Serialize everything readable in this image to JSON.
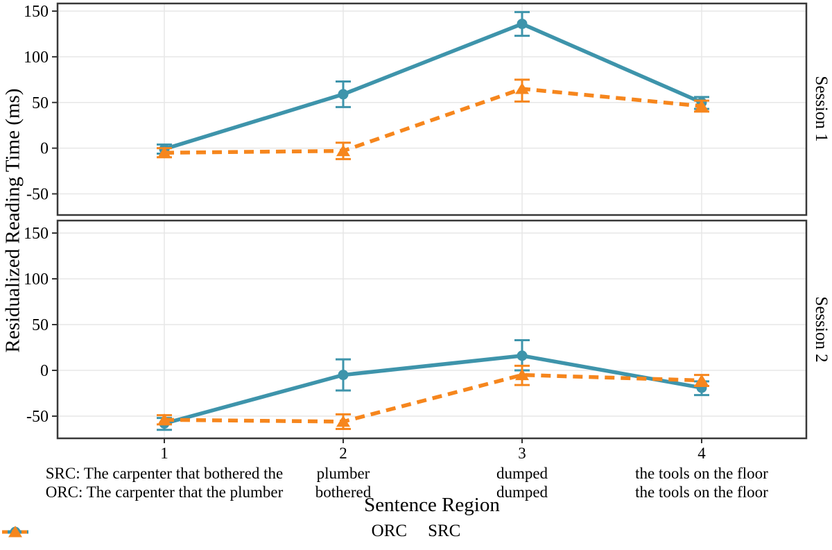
{
  "chart_data": {
    "type": "line",
    "title": "",
    "ylabel": "Residualized Reading Time (ms)",
    "xlabel": "Sentence Region",
    "x": [
      1,
      2,
      3,
      4
    ],
    "y_ticks": [
      150,
      100,
      50,
      0,
      -50
    ],
    "ylim": [
      -73,
      158
    ],
    "grid": "major-only",
    "legend": {
      "position": "bottom",
      "entries": [
        "ORC",
        "SRC"
      ]
    },
    "colors": {
      "orc": "#3E94AB",
      "src": "#F6861D",
      "grid": "#E7E7E7",
      "border": "#383838",
      "axis": "#333333",
      "text": "#000000"
    },
    "series_styles": {
      "ORC": {
        "color": "#3E94AB",
        "line": "solid",
        "marker": "circle"
      },
      "SRC": {
        "color": "#F6861D",
        "line": "dashed",
        "marker": "triangle"
      }
    },
    "facets": [
      {
        "label": "Session 1",
        "series": [
          {
            "name": "ORC",
            "values": [
              -1,
              59,
              136,
              50
            ],
            "ci_lower": [
              -6,
              45,
              123,
              43
            ],
            "ci_upper": [
              4,
              73,
              149,
              56
            ]
          },
          {
            "name": "SRC",
            "values": [
              -5,
              -3,
              65,
              46
            ],
            "ci_lower": [
              -10,
              -12,
              51,
              40
            ],
            "ci_upper": [
              0,
              6,
              75,
              52
            ]
          }
        ]
      },
      {
        "label": "Session 2",
        "series": [
          {
            "name": "ORC",
            "values": [
              -58,
              -5,
              16,
              -19
            ],
            "ci_lower": [
              -65,
              -22,
              0,
              -27
            ],
            "ci_upper": [
              -52,
              12,
              33,
              -12
            ]
          },
          {
            "name": "SRC",
            "values": [
              -54,
              -56,
              -5,
              -11
            ],
            "ci_lower": [
              -59,
              -64,
              -16,
              -17
            ],
            "ci_upper": [
              -49,
              -48,
              5,
              -5
            ]
          }
        ]
      }
    ],
    "x_tick_labels": [
      {
        "number": "1",
        "src_line": "SRC: The carpenter that bothered the",
        "orc_line": "ORC: The carpenter that the plumber"
      },
      {
        "number": "2",
        "src_line": "plumber",
        "orc_line": "bothered"
      },
      {
        "number": "3",
        "src_line": "dumped",
        "orc_line": "dumped"
      },
      {
        "number": "4",
        "src_line": "the tools on the floor",
        "orc_line": "the tools on the floor"
      }
    ]
  }
}
